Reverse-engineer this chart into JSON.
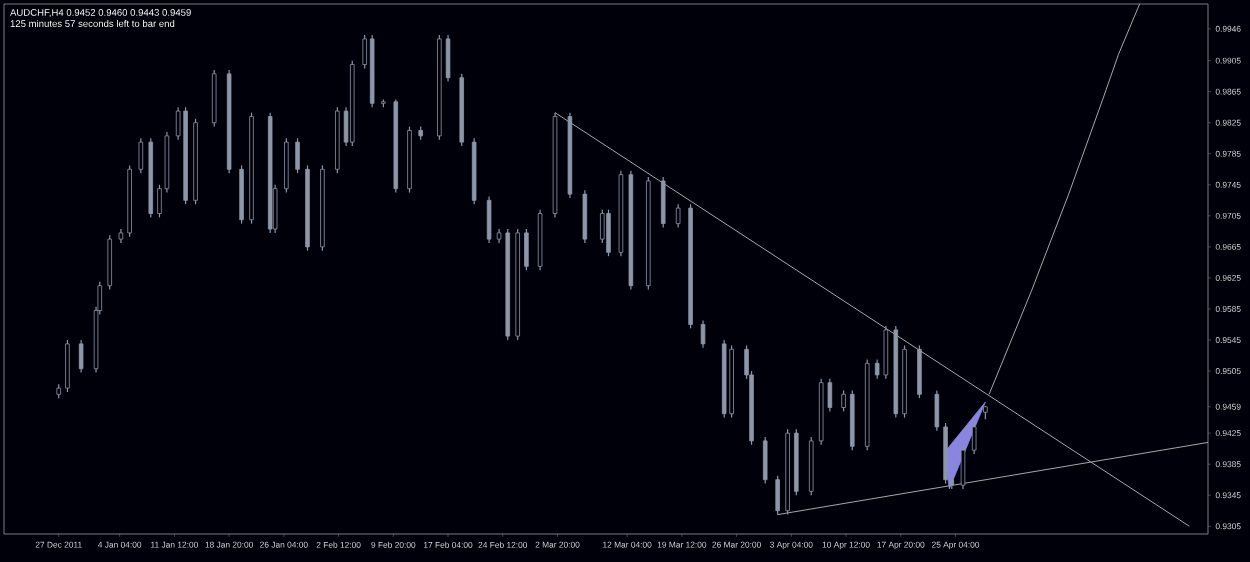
{
  "chart_data": {
    "type": "candlestick",
    "title": "AUDCHF,H4  0.9452 0.9460 0.9443 0.9459",
    "subtitle": "125 minutes 57 seconds left to bar end",
    "color": "#8c97a8",
    "x": [
      "2011-12-27T00:00",
      "2011-12-28T04:00",
      "2011-12-30T00:00",
      "2012-01-01T00:00",
      "2012-01-01T12:00",
      "2012-01-02T20:00",
      "2012-01-04T08:00",
      "2012-01-05T12:00",
      "2012-01-07T00:00",
      "2012-01-08T08:00",
      "2012-01-09T12:00",
      "2012-01-10T12:00",
      "2012-01-12T00:00",
      "2012-01-13T00:00",
      "2012-01-14T08:00",
      "2012-01-16T20:00",
      "2012-01-18T20:00",
      "2012-01-20T12:00",
      "2012-01-21T20:00",
      "2012-01-24T08:00",
      "2012-01-25T00:00",
      "2012-01-26T12:00",
      "2012-01-28T00:00",
      "2012-01-29T08:00",
      "2012-01-31T08:00",
      "2012-02-02T08:00",
      "2012-02-03T12:00",
      "2012-02-04T08:00",
      "2012-02-06T00:00",
      "2012-02-07T00:00",
      "2012-02-08T12:00",
      "2012-02-10T04:00",
      "2012-02-12T00:00",
      "2012-02-13T12:00",
      "2012-02-16T00:00",
      "2012-02-17T04:00",
      "2012-02-19T00:00",
      "2012-02-20T16:00",
      "2012-02-22T16:00",
      "2012-02-24T00:00",
      "2012-02-25T04:00",
      "2012-02-26T12:00",
      "2012-02-27T16:00",
      "2012-02-29T12:00",
      "2012-03-02T12:00",
      "2012-03-04T12:00",
      "2012-03-06T12:00",
      "2012-03-08T20:00",
      "2012-03-09T16:00",
      "2012-03-11T08:00",
      "2012-03-12T16:00",
      "2012-03-15T00:00",
      "2012-03-17T00:00",
      "2012-03-19T00:00",
      "2012-03-20T16:00",
      "2012-03-22T08:00",
      "2012-03-25T04:00",
      "2012-03-26T04:00",
      "2012-03-28T04:00",
      "2012-03-28T20:00",
      "2012-03-30T16:00",
      "2012-04-01T08:00",
      "2012-04-02T16:00",
      "2012-04-03T20:00",
      "2012-04-05T20:00",
      "2012-04-07T04:00",
      "2012-04-08T08:00",
      "2012-04-10T04:00",
      "2012-04-11T08:00",
      "2012-04-13T08:00",
      "2012-04-14T16:00",
      "2012-04-15T20:00",
      "2012-04-17T04:00",
      "2012-04-18T08:00",
      "2012-04-20T08:00",
      "2012-04-22T16:00",
      "2012-04-23T20:00",
      "2012-04-24T16:00",
      "2012-04-26T04:00",
      "2012-04-27T16:00",
      "2012-04-29T04:00"
    ],
    "ohlc": [
      [
        0.9475,
        0.9488,
        0.947,
        0.9483
      ],
      [
        0.9483,
        0.9545,
        0.9478,
        0.954
      ],
      [
        0.954,
        0.9545,
        0.9503,
        0.9508
      ],
      [
        0.9508,
        0.9588,
        0.9503,
        0.9583
      ],
      [
        0.9583,
        0.962,
        0.9578,
        0.9615
      ],
      [
        0.9615,
        0.968,
        0.961,
        0.9675
      ],
      [
        0.9675,
        0.9688,
        0.967,
        0.9683
      ],
      [
        0.9683,
        0.977,
        0.9678,
        0.9765
      ],
      [
        0.9765,
        0.9805,
        0.976,
        0.98
      ],
      [
        0.98,
        0.9805,
        0.9703,
        0.9708
      ],
      [
        0.9708,
        0.9745,
        0.9703,
        0.974
      ],
      [
        0.974,
        0.9813,
        0.9735,
        0.9808
      ],
      [
        0.9808,
        0.9845,
        0.9803,
        0.984
      ],
      [
        0.984,
        0.9845,
        0.972,
        0.9725
      ],
      [
        0.9725,
        0.983,
        0.972,
        0.9825
      ],
      [
        0.9825,
        0.9893,
        0.982,
        0.9888
      ],
      [
        0.9888,
        0.9893,
        0.976,
        0.9765
      ],
      [
        0.9765,
        0.977,
        0.9695,
        0.97
      ],
      [
        0.97,
        0.9838,
        0.9695,
        0.9833
      ],
      [
        0.9833,
        0.9838,
        0.9683,
        0.9688
      ],
      [
        0.9688,
        0.9745,
        0.9683,
        0.974
      ],
      [
        0.974,
        0.9805,
        0.9735,
        0.98
      ],
      [
        0.98,
        0.9805,
        0.976,
        0.9765
      ],
      [
        0.9765,
        0.977,
        0.966,
        0.9665
      ],
      [
        0.9665,
        0.977,
        0.966,
        0.9765
      ],
      [
        0.9765,
        0.9845,
        0.976,
        0.984
      ],
      [
        0.984,
        0.9845,
        0.9795,
        0.98
      ],
      [
        0.98,
        0.9905,
        0.9795,
        0.99
      ],
      [
        0.99,
        0.9938,
        0.9895,
        0.9933
      ],
      [
        0.9933,
        0.9938,
        0.9845,
        0.985
      ],
      [
        0.985,
        0.9855,
        0.9845,
        0.9852
      ],
      [
        0.9852,
        0.9855,
        0.9735,
        0.974
      ],
      [
        0.974,
        0.982,
        0.9735,
        0.9815
      ],
      [
        0.9815,
        0.982,
        0.9803,
        0.9808
      ],
      [
        0.9808,
        0.9938,
        0.9803,
        0.9933
      ],
      [
        0.9933,
        0.9938,
        0.9878,
        0.9883
      ],
      [
        0.9883,
        0.9888,
        0.9795,
        0.98
      ],
      [
        0.98,
        0.9805,
        0.972,
        0.9725
      ],
      [
        0.9725,
        0.973,
        0.967,
        0.9675
      ],
      [
        0.9675,
        0.9688,
        0.967,
        0.9683
      ],
      [
        0.9683,
        0.9688,
        0.9545,
        0.955
      ],
      [
        0.955,
        0.9688,
        0.9545,
        0.9683
      ],
      [
        0.9683,
        0.9688,
        0.9635,
        0.964
      ],
      [
        0.964,
        0.9713,
        0.9635,
        0.9708
      ],
      [
        0.9708,
        0.9838,
        0.9703,
        0.9833
      ],
      [
        0.9833,
        0.9838,
        0.9728,
        0.9733
      ],
      [
        0.9733,
        0.9738,
        0.967,
        0.9675
      ],
      [
        0.9675,
        0.9713,
        0.967,
        0.9708
      ],
      [
        0.9708,
        0.9713,
        0.9653,
        0.9658
      ],
      [
        0.9658,
        0.9763,
        0.9653,
        0.9758
      ],
      [
        0.9758,
        0.9763,
        0.961,
        0.9615
      ],
      [
        0.9615,
        0.9755,
        0.961,
        0.975
      ],
      [
        0.975,
        0.9755,
        0.969,
        0.9695
      ],
      [
        0.9695,
        0.972,
        0.969,
        0.9715
      ],
      [
        0.9715,
        0.972,
        0.956,
        0.9565
      ],
      [
        0.9565,
        0.957,
        0.9535,
        0.954
      ],
      [
        0.954,
        0.9545,
        0.9445,
        0.945
      ],
      [
        0.945,
        0.9538,
        0.9445,
        0.9533
      ],
      [
        0.9533,
        0.9538,
        0.9495,
        0.95
      ],
      [
        0.95,
        0.9505,
        0.941,
        0.9415
      ],
      [
        0.9415,
        0.942,
        0.936,
        0.9365
      ],
      [
        0.9365,
        0.937,
        0.932,
        0.9325
      ],
      [
        0.9325,
        0.943,
        0.932,
        0.9425
      ],
      [
        0.9425,
        0.943,
        0.9345,
        0.935
      ],
      [
        0.935,
        0.942,
        0.9345,
        0.9415
      ],
      [
        0.9415,
        0.9495,
        0.941,
        0.949
      ],
      [
        0.949,
        0.9495,
        0.9453,
        0.9458
      ],
      [
        0.9458,
        0.948,
        0.9453,
        0.9475
      ],
      [
        0.9475,
        0.948,
        0.9403,
        0.9408
      ],
      [
        0.9408,
        0.952,
        0.9403,
        0.9515
      ],
      [
        0.9515,
        0.952,
        0.9495,
        0.95
      ],
      [
        0.95,
        0.9563,
        0.9495,
        0.9558
      ],
      [
        0.9558,
        0.9563,
        0.9445,
        0.945
      ],
      [
        0.945,
        0.9538,
        0.9445,
        0.9533
      ],
      [
        0.9533,
        0.9538,
        0.947,
        0.9475
      ],
      [
        0.9475,
        0.948,
        0.9428,
        0.9433
      ],
      [
        0.9433,
        0.9438,
        0.936,
        0.9365
      ],
      [
        0.9365,
        0.937,
        0.9353,
        0.9358
      ],
      [
        0.9358,
        0.9408,
        0.9353,
        0.9403
      ],
      [
        0.9403,
        0.9438,
        0.9398,
        0.9433
      ],
      [
        0.9452,
        0.946,
        0.9443,
        0.9459
      ]
    ],
    "series": [
      {
        "type": "line",
        "color": "#a8a8a8",
        "x": [
          "2012-03-02T12:00",
          "2012-05-26T12:00"
        ],
        "values": [
          0.9838,
          0.9305
        ]
      },
      {
        "type": "line",
        "color": "#a8a8a8",
        "x": [
          "2012-04-01T08:00",
          "2012-05-29T00:00"
        ],
        "values": [
          0.932,
          0.9413
        ]
      },
      {
        "type": "line",
        "color": "#a8a8a8",
        "x": [
          "2012-04-29T16:00",
          "2012-05-05T08:00",
          "2012-05-10T08:00",
          "2012-05-15T00:00",
          "2012-05-17T00:00",
          "2012-05-19T20:00"
        ],
        "values": [
          0.9475,
          0.9608,
          0.9733,
          0.9858,
          0.9913,
          0.9978
        ]
      },
      {
        "type": "area",
        "color": "#8a86e0",
        "x": [
          "2012-04-23T16:00",
          "2012-04-24T08:00",
          "2012-04-29T04:00"
        ],
        "values": [
          0.94,
          0.9353,
          0.9465
        ]
      }
    ],
    "xlim": [
      "2011-12-19T16:00",
      "2012-05-29T00:00"
    ],
    "xticks": [
      {
        "value": "2011-12-27",
        "label": "27 Dec 2011"
      },
      {
        "value": "2012-01-04T04:00",
        "label": "4 Jan 04:00"
      },
      {
        "value": "2012-01-11T12:00",
        "label": "11 Jan 12:00"
      },
      {
        "value": "2012-01-18T20:00",
        "label": "18 Jan 20:00"
      },
      {
        "value": "2012-01-26T04:00",
        "label": "26 Jan 04:00"
      },
      {
        "value": "2012-02-02T12:00",
        "label": "2 Feb 12:00"
      },
      {
        "value": "2012-02-09T20:00",
        "label": "9 Feb 20:00"
      },
      {
        "value": "2012-02-17T04:00",
        "label": "17 Feb 04:00"
      },
      {
        "value": "2012-02-24T12:00",
        "label": "24 Feb 12:00"
      },
      {
        "value": "2012-03-02T20:00",
        "label": "2 Mar 20:00"
      },
      {
        "value": "2012-03-12T04:00",
        "label": "12 Mar 04:00"
      },
      {
        "value": "2012-03-19T12:00",
        "label": "19 Mar 12:00"
      },
      {
        "value": "2012-03-26T20:00",
        "label": "26 Mar 20:00"
      },
      {
        "value": "2012-04-03T04:00",
        "label": "3 Apr 04:00"
      },
      {
        "value": "2012-04-10T12:00",
        "label": "10 Apr 12:00"
      },
      {
        "value": "2012-04-17T20:00",
        "label": "17 Apr 20:00"
      },
      {
        "value": "2012-04-25T04:00",
        "label": "25 Apr 04:00"
      }
    ],
    "ylim": [
      0.9295,
      0.9978
    ],
    "yticks": [
      {
        "value": 0.9305,
        "label": "0.9305"
      },
      {
        "value": 0.9345,
        "label": "0.9345"
      },
      {
        "value": 0.9385,
        "label": "0.9385"
      },
      {
        "value": 0.9425,
        "label": "0.9425"
      },
      {
        "value": 0.9459,
        "label": "0.9459"
      },
      {
        "value": 0.9505,
        "label": "0.9505"
      },
      {
        "value": 0.9545,
        "label": "0.9545"
      },
      {
        "value": 0.9585,
        "label": "0.9585"
      },
      {
        "value": 0.9625,
        "label": "0.9625"
      },
      {
        "value": 0.9665,
        "label": "0.9665"
      },
      {
        "value": 0.9705,
        "label": "0.9705"
      },
      {
        "value": 0.9745,
        "label": "0.9745"
      },
      {
        "value": 0.9785,
        "label": "0.9785"
      },
      {
        "value": 0.9825,
        "label": "0.9825"
      },
      {
        "value": 0.9865,
        "label": "0.9865"
      },
      {
        "value": 0.9905,
        "label": "0.9905"
      },
      {
        "value": 0.9946,
        "label": "0.9946"
      }
    ]
  }
}
